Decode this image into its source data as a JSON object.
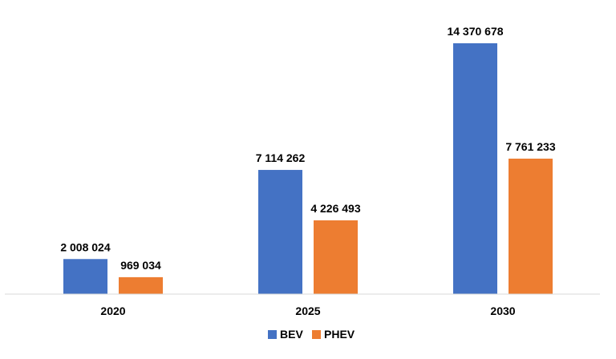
{
  "chart_data": {
    "type": "bar",
    "categories": [
      "2020",
      "2025",
      "2030"
    ],
    "series": [
      {
        "name": "BEV",
        "color": "#4472C4",
        "values": [
          2008024,
          7114262,
          14370678
        ],
        "labels": [
          "2 008 024",
          "7 114 262",
          "14 370 678"
        ]
      },
      {
        "name": "PHEV",
        "color": "#ED7D31",
        "values": [
          969034,
          4226493,
          7761233
        ],
        "labels": [
          "969 034",
          "4 226 493",
          "7 761 233"
        ]
      }
    ],
    "ylim": [
      0,
      14370678
    ],
    "grid": false,
    "legend_position": "bottom"
  }
}
